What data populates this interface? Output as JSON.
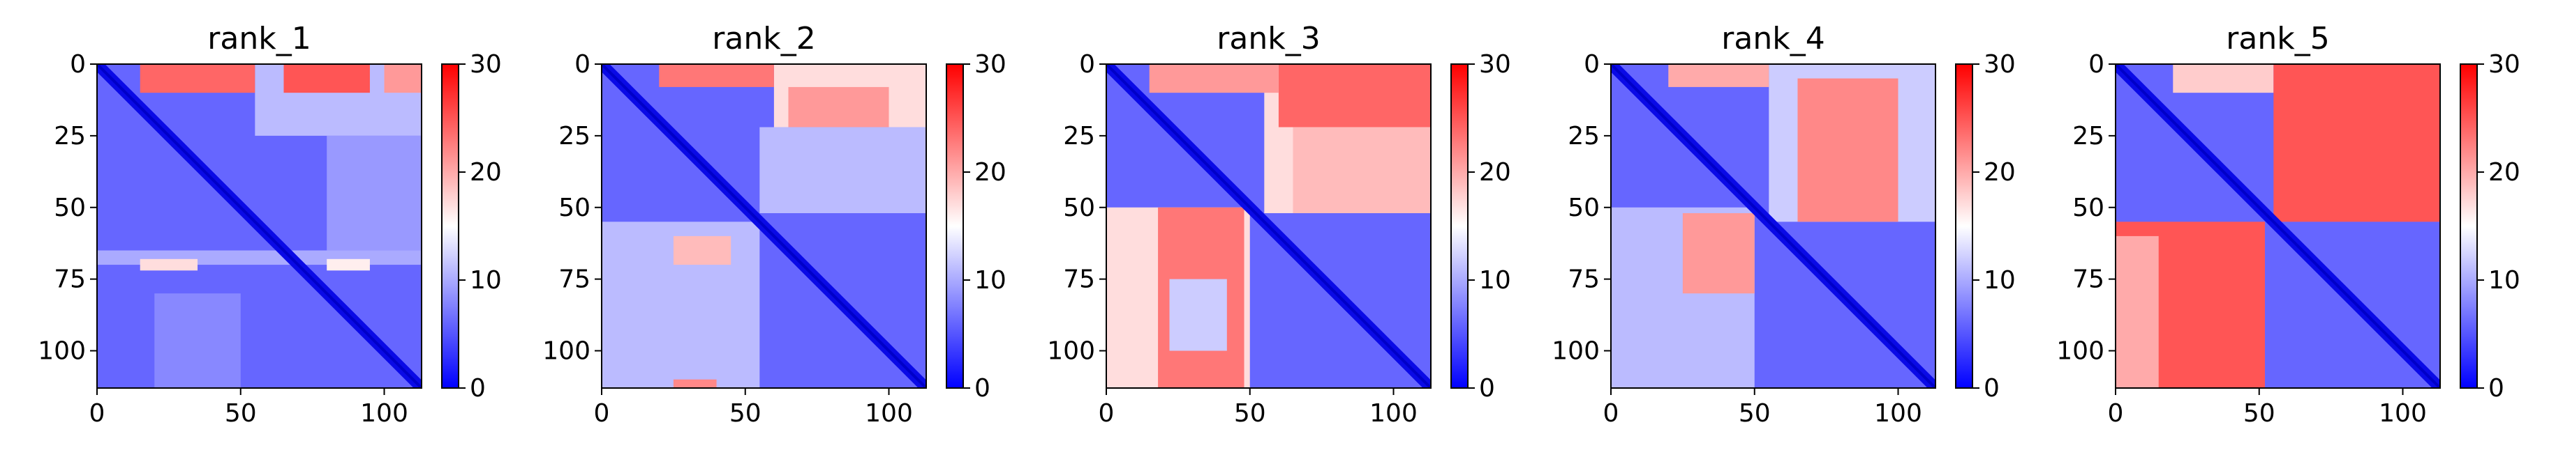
{
  "chart_data": [
    {
      "type": "heatmap",
      "title": "rank_1",
      "xlabel": "",
      "ylabel": "",
      "x_range": [
        0,
        113
      ],
      "y_range": [
        0,
        113
      ],
      "xticks": [
        0,
        50,
        100
      ],
      "yticks": [
        0,
        25,
        50,
        75,
        100
      ],
      "colorbar": {
        "range": [
          0,
          30
        ],
        "ticks": [
          0,
          10,
          20,
          30
        ],
        "colormap": "bwr"
      },
      "regions": [
        {
          "rows": [
            0,
            115
          ],
          "cols": [
            0,
            115
          ],
          "value": 6
        },
        {
          "rows": [
            0,
            25
          ],
          "cols": [
            55,
            115
          ],
          "value": 11
        },
        {
          "rows": [
            0,
            10
          ],
          "cols": [
            15,
            55
          ],
          "value": 24
        },
        {
          "rows": [
            0,
            10
          ],
          "cols": [
            65,
            95
          ],
          "value": 25
        },
        {
          "rows": [
            0,
            10
          ],
          "cols": [
            100,
            115
          ],
          "value": 21
        },
        {
          "rows": [
            25,
            65
          ],
          "cols": [
            80,
            115
          ],
          "value": 9
        },
        {
          "rows": [
            65,
            70
          ],
          "cols": [
            0,
            115
          ],
          "value": 10
        },
        {
          "rows": [
            68,
            72
          ],
          "cols": [
            15,
            35
          ],
          "value": 17
        },
        {
          "rows": [
            68,
            72
          ],
          "cols": [
            80,
            95
          ],
          "value": 16
        },
        {
          "rows": [
            80,
            113
          ],
          "cols": [
            20,
            50
          ],
          "value": 8
        }
      ]
    },
    {
      "type": "heatmap",
      "title": "rank_2",
      "xlabel": "",
      "ylabel": "",
      "x_range": [
        0,
        113
      ],
      "y_range": [
        0,
        113
      ],
      "xticks": [
        0,
        50,
        100
      ],
      "yticks": [
        0,
        25,
        50,
        75,
        100
      ],
      "colorbar": {
        "range": [
          0,
          30
        ],
        "ticks": [
          0,
          10,
          20,
          30
        ],
        "colormap": "bwr"
      },
      "regions": [
        {
          "rows": [
            0,
            115
          ],
          "cols": [
            0,
            115
          ],
          "value": 6
        },
        {
          "rows": [
            0,
            22
          ],
          "cols": [
            60,
            115
          ],
          "value": 17
        },
        {
          "rows": [
            0,
            8
          ],
          "cols": [
            20,
            60
          ],
          "value": 23
        },
        {
          "rows": [
            8,
            22
          ],
          "cols": [
            65,
            100
          ],
          "value": 21
        },
        {
          "rows": [
            22,
            52
          ],
          "cols": [
            55,
            115
          ],
          "value": 11
        },
        {
          "rows": [
            55,
            113
          ],
          "cols": [
            0,
            55
          ],
          "value": 11
        },
        {
          "rows": [
            60,
            70
          ],
          "cols": [
            25,
            45
          ],
          "value": 19
        },
        {
          "rows": [
            110,
            113
          ],
          "cols": [
            25,
            40
          ],
          "value": 22
        }
      ]
    },
    {
      "type": "heatmap",
      "title": "rank_3",
      "xlabel": "",
      "ylabel": "",
      "x_range": [
        0,
        113
      ],
      "y_range": [
        0,
        113
      ],
      "xticks": [
        0,
        50,
        100
      ],
      "yticks": [
        0,
        25,
        50,
        75,
        100
      ],
      "colorbar": {
        "range": [
          0,
          30
        ],
        "ticks": [
          0,
          10,
          20,
          30
        ],
        "colormap": "bwr"
      },
      "regions": [
        {
          "rows": [
            0,
            115
          ],
          "cols": [
            0,
            115
          ],
          "value": 6
        },
        {
          "rows": [
            0,
            52
          ],
          "cols": [
            55,
            115
          ],
          "value": 17
        },
        {
          "rows": [
            0,
            22
          ],
          "cols": [
            60,
            115
          ],
          "value": 24
        },
        {
          "rows": [
            22,
            52
          ],
          "cols": [
            65,
            115
          ],
          "value": 19
        },
        {
          "rows": [
            0,
            10
          ],
          "cols": [
            15,
            60
          ],
          "value": 21
        },
        {
          "rows": [
            50,
            113
          ],
          "cols": [
            0,
            50
          ],
          "value": 17
        },
        {
          "rows": [
            50,
            113
          ],
          "cols": [
            18,
            48
          ],
          "value": 23
        },
        {
          "rows": [
            75,
            100
          ],
          "cols": [
            22,
            42
          ],
          "value": 12
        }
      ]
    },
    {
      "type": "heatmap",
      "title": "rank_4",
      "xlabel": "",
      "ylabel": "",
      "x_range": [
        0,
        113
      ],
      "y_range": [
        0,
        113
      ],
      "xticks": [
        0,
        50,
        100
      ],
      "yticks": [
        0,
        25,
        50,
        75,
        100
      ],
      "colorbar": {
        "range": [
          0,
          30
        ],
        "ticks": [
          0,
          10,
          20,
          30
        ],
        "colormap": "bwr"
      },
      "regions": [
        {
          "rows": [
            0,
            115
          ],
          "cols": [
            0,
            115
          ],
          "value": 6
        },
        {
          "rows": [
            0,
            55
          ],
          "cols": [
            55,
            115
          ],
          "value": 12
        },
        {
          "rows": [
            5,
            55
          ],
          "cols": [
            65,
            100
          ],
          "value": 22
        },
        {
          "rows": [
            0,
            8
          ],
          "cols": [
            20,
            55
          ],
          "value": 20
        },
        {
          "rows": [
            50,
            113
          ],
          "cols": [
            0,
            50
          ],
          "value": 11
        },
        {
          "rows": [
            52,
            80
          ],
          "cols": [
            25,
            50
          ],
          "value": 21
        }
      ]
    },
    {
      "type": "heatmap",
      "title": "rank_5",
      "xlabel": "",
      "ylabel": "",
      "x_range": [
        0,
        113
      ],
      "y_range": [
        0,
        113
      ],
      "xticks": [
        0,
        50,
        100
      ],
      "yticks": [
        0,
        25,
        50,
        75,
        100
      ],
      "colorbar": {
        "range": [
          0,
          30
        ],
        "ticks": [
          0,
          10,
          20,
          30
        ],
        "colormap": "bwr"
      },
      "regions": [
        {
          "rows": [
            0,
            115
          ],
          "cols": [
            0,
            115
          ],
          "value": 6
        },
        {
          "rows": [
            0,
            10
          ],
          "cols": [
            20,
            55
          ],
          "value": 18
        },
        {
          "rows": [
            0,
            55
          ],
          "cols": [
            55,
            115
          ],
          "value": 25
        },
        {
          "rows": [
            55,
            113
          ],
          "cols": [
            0,
            52
          ],
          "value": 25
        },
        {
          "rows": [
            60,
            113
          ],
          "cols": [
            0,
            15
          ],
          "value": 20
        }
      ]
    }
  ]
}
